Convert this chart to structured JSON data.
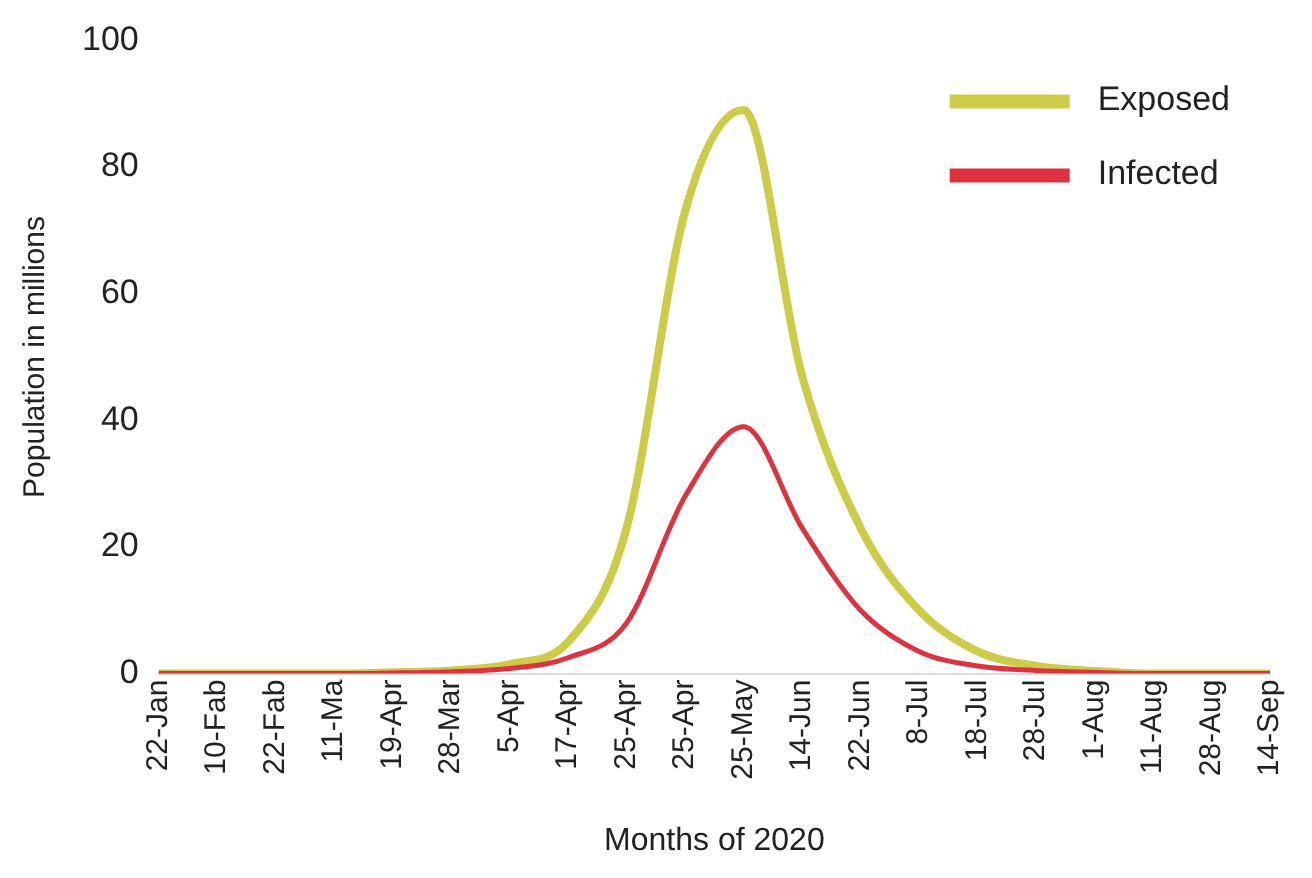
{
  "chart_data": {
    "type": "line",
    "xlabel": "Months of 2020",
    "ylabel": "Population in millions",
    "categories": [
      "22-Jan",
      "10-Fab",
      "22-Fab",
      "11-Ma",
      "19-Apr",
      "28-Mar",
      "5-Apr",
      "17-Apr",
      "25-Apr",
      "25-Apr",
      "25-May",
      "14-Jun",
      "22-Jun",
      "8-Jul",
      "18-Jul",
      "28-Jul",
      "1-Aug",
      "11-Aug",
      "28-Aug",
      "14-Sep"
    ],
    "series": [
      {
        "name": "Exposed",
        "color": "#cccc48",
        "values": [
          0,
          0,
          0,
          0,
          0.2,
          0.5,
          1.5,
          5,
          23,
          73,
          89,
          47,
          23,
          10,
          3.5,
          1.2,
          0.4,
          0,
          0,
          0
        ]
      },
      {
        "name": "Infected",
        "color": "#dd3340",
        "values": [
          0,
          0,
          0,
          0,
          0.1,
          0.3,
          0.8,
          2.5,
          8,
          28,
          39,
          23,
          10,
          3.5,
          1.2,
          0.5,
          0.2,
          0,
          0,
          0
        ]
      }
    ],
    "ylim": [
      0,
      100
    ],
    "yticks": [
      0,
      20,
      40,
      60,
      80,
      100
    ],
    "grid": false,
    "legend": "top right",
    "marker": "none",
    "line_style": "solid"
  }
}
